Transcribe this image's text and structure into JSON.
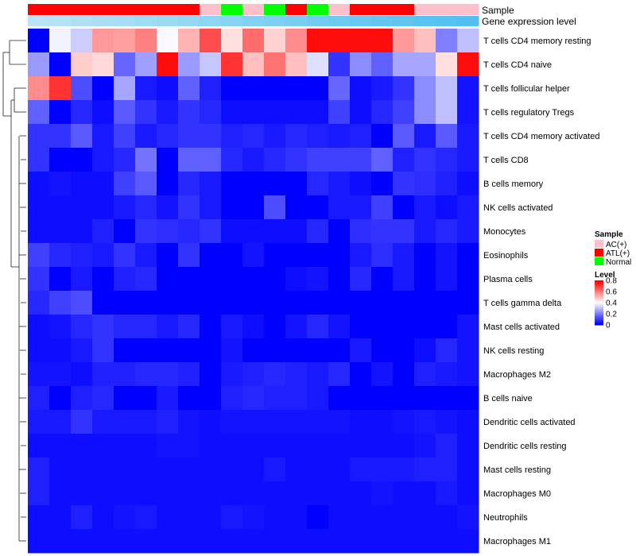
{
  "chart_data": {
    "type": "heatmap",
    "title": "",
    "annotation_titles": {
      "sample": "Sample",
      "level": "Gene expression level"
    },
    "rows": [
      "T cells CD4 memory resting",
      "T cells CD4 naive",
      "T cells follicular helper",
      "T cells regulatory  Tregs",
      "T cells CD4 memory activated",
      "T cells CD8",
      "B cells memory",
      "NK cells activated",
      "Monocytes",
      "Eosinophils",
      "Plasma cells",
      "T cells gamma delta",
      "Mast cells activated",
      "NK cells resting",
      "Macrophages M2",
      "B cells naive",
      "Dendritic cells activated",
      "Dendritic cells resting",
      "Mast cells resting",
      "Macrophages M0",
      "Neutrophils",
      "Macrophages M1"
    ],
    "sample_groups": [
      "ATL(+)",
      "ATL(+)",
      "ATL(+)",
      "ATL(+)",
      "ATL(+)",
      "ATL(+)",
      "ATL(+)",
      "ATL(+)",
      "AC(+)",
      "Normal",
      "AC(+)",
      "Normal",
      "ATL(+)",
      "Normal",
      "AC(+)",
      "ATL(+)",
      "ATL(+)",
      "ATL(+)",
      "AC(+)",
      "AC(+)",
      "AC(+)"
    ],
    "gene_expression_level": [
      0.05,
      0.1,
      0.15,
      0.2,
      0.25,
      0.3,
      0.35,
      0.4,
      0.45,
      0.5,
      0.55,
      0.6,
      0.65,
      0.7,
      0.75,
      0.8,
      0.85,
      0.88,
      0.92,
      0.96,
      1.0
    ],
    "values": [
      [
        0.0,
        0.38,
        0.32,
        0.56,
        0.55,
        0.6,
        0.39,
        0.52,
        0.68,
        0.45,
        0.63,
        0.47,
        0.58,
        0.78,
        0.78,
        0.78,
        0.78,
        0.56,
        0.5,
        0.2,
        0.3
      ],
      [
        0.24,
        0.0,
        0.48,
        0.46,
        0.16,
        0.25,
        0.78,
        0.24,
        0.31,
        0.72,
        0.5,
        0.62,
        0.5,
        0.35,
        0.08,
        0.22,
        0.15,
        0.26,
        0.26,
        0.45,
        0.78
      ],
      [
        0.58,
        0.72,
        0.12,
        0.0,
        0.26,
        0.04,
        0.02,
        0.15,
        0.05,
        0.0,
        0.0,
        0.0,
        0.0,
        0.0,
        0.16,
        0.02,
        0.04,
        0.08,
        0.22,
        0.3,
        0.03
      ],
      [
        0.15,
        0.0,
        0.06,
        0.02,
        0.14,
        0.08,
        0.04,
        0.08,
        0.06,
        0.02,
        0.02,
        0.02,
        0.02,
        0.02,
        0.1,
        0.02,
        0.06,
        0.1,
        0.22,
        0.3,
        0.03
      ],
      [
        0.08,
        0.08,
        0.14,
        0.04,
        0.1,
        0.04,
        0.06,
        0.08,
        0.08,
        0.05,
        0.06,
        0.04,
        0.06,
        0.05,
        0.04,
        0.05,
        0.0,
        0.14,
        0.04,
        0.14,
        0.04
      ],
      [
        0.08,
        0.0,
        0.0,
        0.04,
        0.06,
        0.18,
        0.0,
        0.15,
        0.15,
        0.06,
        0.04,
        0.06,
        0.08,
        0.1,
        0.1,
        0.1,
        0.15,
        0.05,
        0.08,
        0.06,
        0.04
      ],
      [
        0.02,
        0.03,
        0.02,
        0.02,
        0.1,
        0.14,
        0.0,
        0.06,
        0.04,
        0.0,
        0.0,
        0.0,
        0.0,
        0.06,
        0.04,
        0.02,
        0.0,
        0.08,
        0.07,
        0.05,
        0.02
      ],
      [
        0.02,
        0.02,
        0.02,
        0.02,
        0.04,
        0.06,
        0.03,
        0.08,
        0.04,
        0.0,
        0.0,
        0.12,
        0.0,
        0.0,
        0.04,
        0.04,
        0.1,
        0.0,
        0.04,
        0.02,
        0.04
      ],
      [
        0.02,
        0.02,
        0.02,
        0.05,
        0.0,
        0.08,
        0.07,
        0.06,
        0.08,
        0.02,
        0.02,
        0.02,
        0.02,
        0.06,
        0.0,
        0.07,
        0.08,
        0.08,
        0.04,
        0.06,
        0.04
      ],
      [
        0.1,
        0.06,
        0.05,
        0.04,
        0.08,
        0.04,
        0.0,
        0.08,
        0.0,
        0.0,
        0.03,
        0.0,
        0.0,
        0.0,
        0.0,
        0.04,
        0.07,
        0.04,
        0.0,
        0.03,
        0.0
      ],
      [
        0.08,
        0.0,
        0.04,
        0.0,
        0.05,
        0.06,
        0.0,
        0.0,
        0.0,
        0.0,
        0.0,
        0.0,
        0.02,
        0.03,
        0.0,
        0.06,
        0.0,
        0.04,
        0.0,
        0.03,
        0.0
      ],
      [
        0.06,
        0.1,
        0.12,
        0.0,
        0.0,
        0.0,
        0.0,
        0.0,
        0.0,
        0.0,
        0.0,
        0.0,
        0.0,
        0.0,
        0.0,
        0.0,
        0.0,
        0.0,
        0.0,
        0.0,
        0.0
      ],
      [
        0.02,
        0.03,
        0.06,
        0.08,
        0.06,
        0.06,
        0.04,
        0.06,
        0.0,
        0.04,
        0.02,
        0.0,
        0.03,
        0.06,
        0.03,
        0.0,
        0.0,
        0.0,
        0.0,
        0.0,
        0.03
      ],
      [
        0.02,
        0.02,
        0.04,
        0.08,
        0.0,
        0.0,
        0.0,
        0.0,
        0.0,
        0.03,
        0.0,
        0.0,
        0.0,
        0.0,
        0.0,
        0.04,
        0.0,
        0.0,
        0.02,
        0.06,
        0.03
      ],
      [
        0.03,
        0.03,
        0.02,
        0.05,
        0.05,
        0.06,
        0.06,
        0.05,
        0.0,
        0.04,
        0.05,
        0.06,
        0.05,
        0.04,
        0.06,
        0.0,
        0.03,
        0.0,
        0.05,
        0.04,
        0.03
      ],
      [
        0.05,
        0.0,
        0.05,
        0.06,
        0.0,
        0.0,
        0.04,
        0.0,
        0.0,
        0.05,
        0.06,
        0.05,
        0.05,
        0.04,
        0.0,
        0.0,
        0.0,
        0.0,
        0.0,
        0.0,
        0.0
      ],
      [
        0.04,
        0.04,
        0.08,
        0.04,
        0.04,
        0.04,
        0.05,
        0.03,
        0.02,
        0.03,
        0.03,
        0.03,
        0.03,
        0.03,
        0.03,
        0.02,
        0.02,
        0.03,
        0.04,
        0.03,
        0.02
      ],
      [
        0.02,
        0.02,
        0.02,
        0.02,
        0.02,
        0.02,
        0.03,
        0.03,
        0.02,
        0.02,
        0.02,
        0.02,
        0.02,
        0.02,
        0.02,
        0.02,
        0.02,
        0.02,
        0.03,
        0.05,
        0.02
      ],
      [
        0.05,
        0.02,
        0.02,
        0.02,
        0.02,
        0.02,
        0.02,
        0.02,
        0.02,
        0.02,
        0.02,
        0.04,
        0.02,
        0.02,
        0.02,
        0.04,
        0.04,
        0.04,
        0.05,
        0.05,
        0.02
      ],
      [
        0.05,
        0.02,
        0.02,
        0.02,
        0.02,
        0.02,
        0.02,
        0.02,
        0.02,
        0.02,
        0.02,
        0.02,
        0.02,
        0.02,
        0.02,
        0.02,
        0.03,
        0.02,
        0.02,
        0.04,
        0.02
      ],
      [
        0.02,
        0.02,
        0.05,
        0.02,
        0.03,
        0.04,
        0.02,
        0.02,
        0.02,
        0.04,
        0.03,
        0.02,
        0.02,
        0.0,
        0.02,
        0.02,
        0.02,
        0.02,
        0.02,
        0.02,
        0.03
      ],
      [
        0.02,
        0.02,
        0.02,
        0.02,
        0.02,
        0.02,
        0.02,
        0.02,
        0.02,
        0.02,
        0.02,
        0.02,
        0.02,
        0.02,
        0.02,
        0.02,
        0.02,
        0.02,
        0.02,
        0.02,
        0.02
      ]
    ],
    "legend_sample": {
      "title": "Sample",
      "items": [
        {
          "label": "AC(+)",
          "color": "#FFC0CB"
        },
        {
          "label": "ATL(+)",
          "color": "#FF0000"
        },
        {
          "label": "Normal",
          "color": "#00FF00"
        }
      ]
    },
    "legend_level": {
      "title": "Level",
      "ticks": [
        "0.8",
        "0.6",
        "0.4",
        "0.2",
        "0"
      ],
      "tick_values": [
        0.8,
        0.6,
        0.4,
        0.2,
        0.0
      ],
      "range": [
        0,
        0.8
      ]
    },
    "colors": {
      "low": "#0000FF",
      "mid": "#FFFFFF",
      "high": "#FF0000",
      "level_light": "#BFE6F7",
      "level_dark": "#52C0EE"
    }
  }
}
